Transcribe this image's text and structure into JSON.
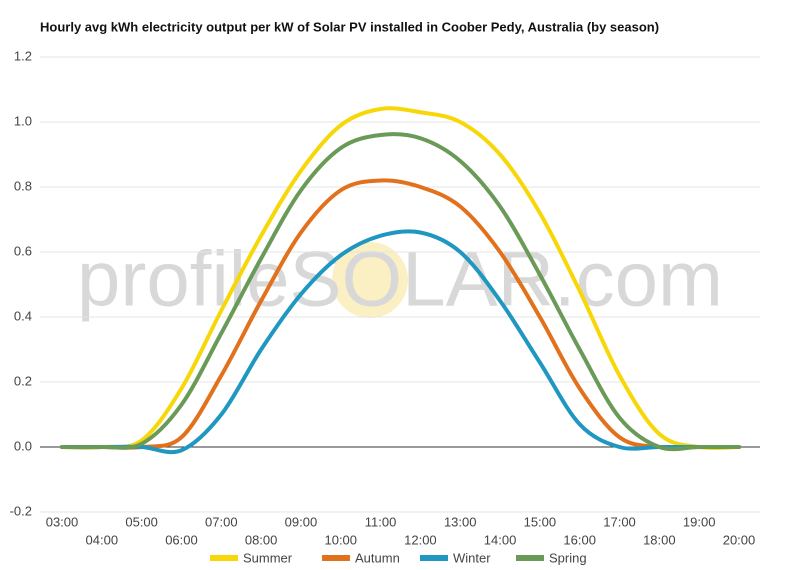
{
  "chart_data": {
    "type": "line",
    "title": "Hourly avg kWh electricity output per kW of Solar PV installed in Coober Pedy, Australia (by season)",
    "watermark": "profileSOLAR.com",
    "categories": [
      "03:00",
      "04:00",
      "05:00",
      "06:00",
      "07:00",
      "08:00",
      "09:00",
      "10:00",
      "11:00",
      "12:00",
      "13:00",
      "14:00",
      "15:00",
      "16:00",
      "17:00",
      "18:00",
      "19:00",
      "20:00"
    ],
    "series": [
      {
        "name": "Summer",
        "color": "#f7d708",
        "values": [
          0,
          0,
          0.02,
          0.18,
          0.42,
          0.65,
          0.85,
          0.99,
          1.04,
          1.03,
          1.0,
          0.9,
          0.72,
          0.48,
          0.22,
          0.04,
          0,
          0
        ]
      },
      {
        "name": "Autumn",
        "color": "#e2711d",
        "values": [
          0,
          0,
          0,
          0.03,
          0.22,
          0.45,
          0.66,
          0.79,
          0.82,
          0.8,
          0.74,
          0.6,
          0.4,
          0.18,
          0.03,
          0,
          0,
          0
        ]
      },
      {
        "name": "Winter",
        "color": "#1f97c1",
        "values": [
          0,
          0,
          0,
          -0.01,
          0.1,
          0.3,
          0.47,
          0.59,
          0.65,
          0.66,
          0.6,
          0.45,
          0.26,
          0.07,
          0,
          0,
          0,
          0
        ]
      },
      {
        "name": "Spring",
        "color": "#6a9a57",
        "values": [
          0,
          0,
          0.01,
          0.13,
          0.35,
          0.58,
          0.79,
          0.92,
          0.96,
          0.95,
          0.88,
          0.74,
          0.53,
          0.3,
          0.09,
          0,
          0,
          0
        ]
      }
    ],
    "ylim": [
      -0.2,
      1.2
    ],
    "yticks": [
      -0.2,
      {
        "value": 0,
        "label": "0.0"
      },
      0.2,
      0.4,
      0.6,
      0.8,
      {
        "value": 1,
        "label": "1.0"
      },
      1.2
    ],
    "grid": true
  }
}
